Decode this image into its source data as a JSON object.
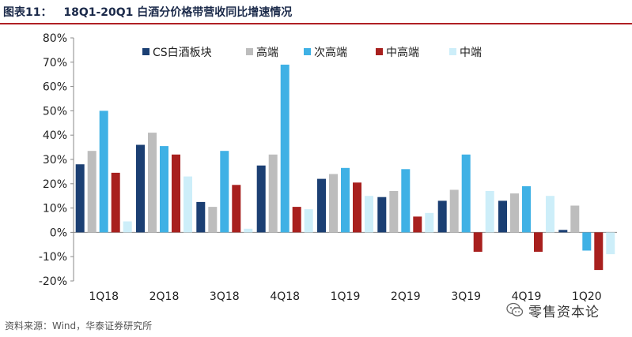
{
  "header": {
    "figure_label": "图表11：",
    "title": "18Q1-20Q1 白酒分价格带营收同比增速情况"
  },
  "source": "资料来源：Wind，华泰证券研究所",
  "watermark": {
    "text": "零售资本论",
    "icon": "wechat-bubble-icon"
  },
  "chart_data": {
    "type": "bar",
    "categories": [
      "1Q18",
      "2Q18",
      "3Q18",
      "4Q18",
      "1Q19",
      "2Q19",
      "3Q19",
      "4Q19",
      "1Q20"
    ],
    "yticks": [
      "80%",
      "70%",
      "60%",
      "50%",
      "40%",
      "30%",
      "20%",
      "10%",
      "0%",
      "-10%",
      "-20%"
    ],
    "ylim": [
      -20,
      80
    ],
    "grid": false,
    "legend": "top",
    "series": [
      {
        "name": "CS白酒板块",
        "color": "#1b3f73",
        "values": [
          28,
          36,
          12.5,
          27.5,
          22,
          14.5,
          13,
          13,
          1
        ]
      },
      {
        "name": "高端",
        "color": "#bdbdbd",
        "values": [
          33.5,
          41,
          10.5,
          32,
          24,
          17,
          17.5,
          16,
          11
        ]
      },
      {
        "name": "次高端",
        "color": "#3fb1e5",
        "values": [
          50,
          35.5,
          33.5,
          69,
          26.5,
          26,
          32,
          19,
          -7.5
        ]
      },
      {
        "name": "中高端",
        "color": "#a8201e",
        "values": [
          24.5,
          32,
          19.5,
          10.5,
          20.5,
          6.5,
          -8,
          -8,
          -15.5
        ]
      },
      {
        "name": "中端",
        "color": "#cdeef9",
        "values": [
          4.5,
          23,
          1.5,
          9.5,
          15,
          8,
          17,
          15,
          -9
        ]
      }
    ]
  }
}
